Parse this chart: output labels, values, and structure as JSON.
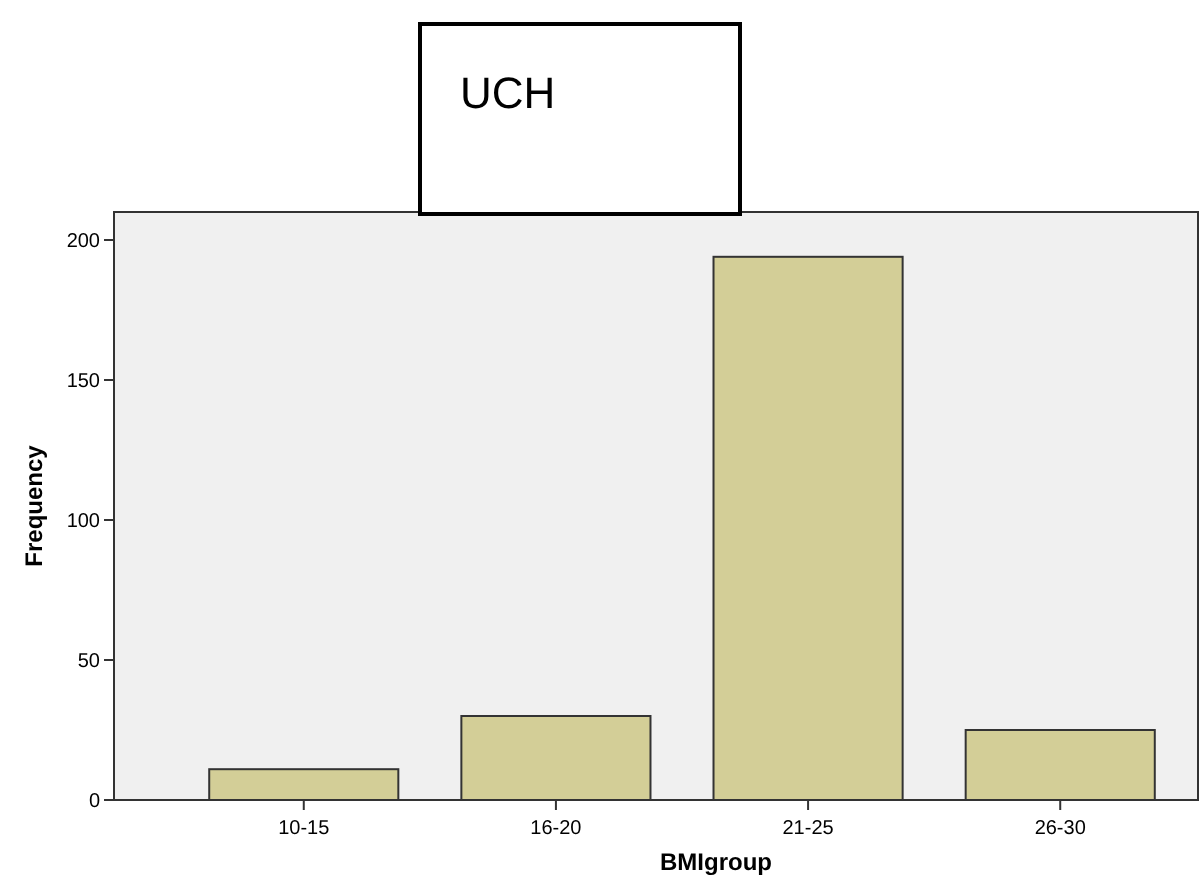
{
  "chart_data": {
    "type": "bar",
    "title": "UCH",
    "xlabel": "BMIgroup",
    "ylabel": "Frequency",
    "categories": [
      "10-15",
      "16-20",
      "21-25",
      "26-30"
    ],
    "values": [
      11,
      30,
      194,
      25
    ],
    "color": "#d3ce97",
    "ylim": [
      0,
      210
    ],
    "yticks": [
      0,
      50,
      100,
      150,
      200
    ],
    "grid": false
  }
}
